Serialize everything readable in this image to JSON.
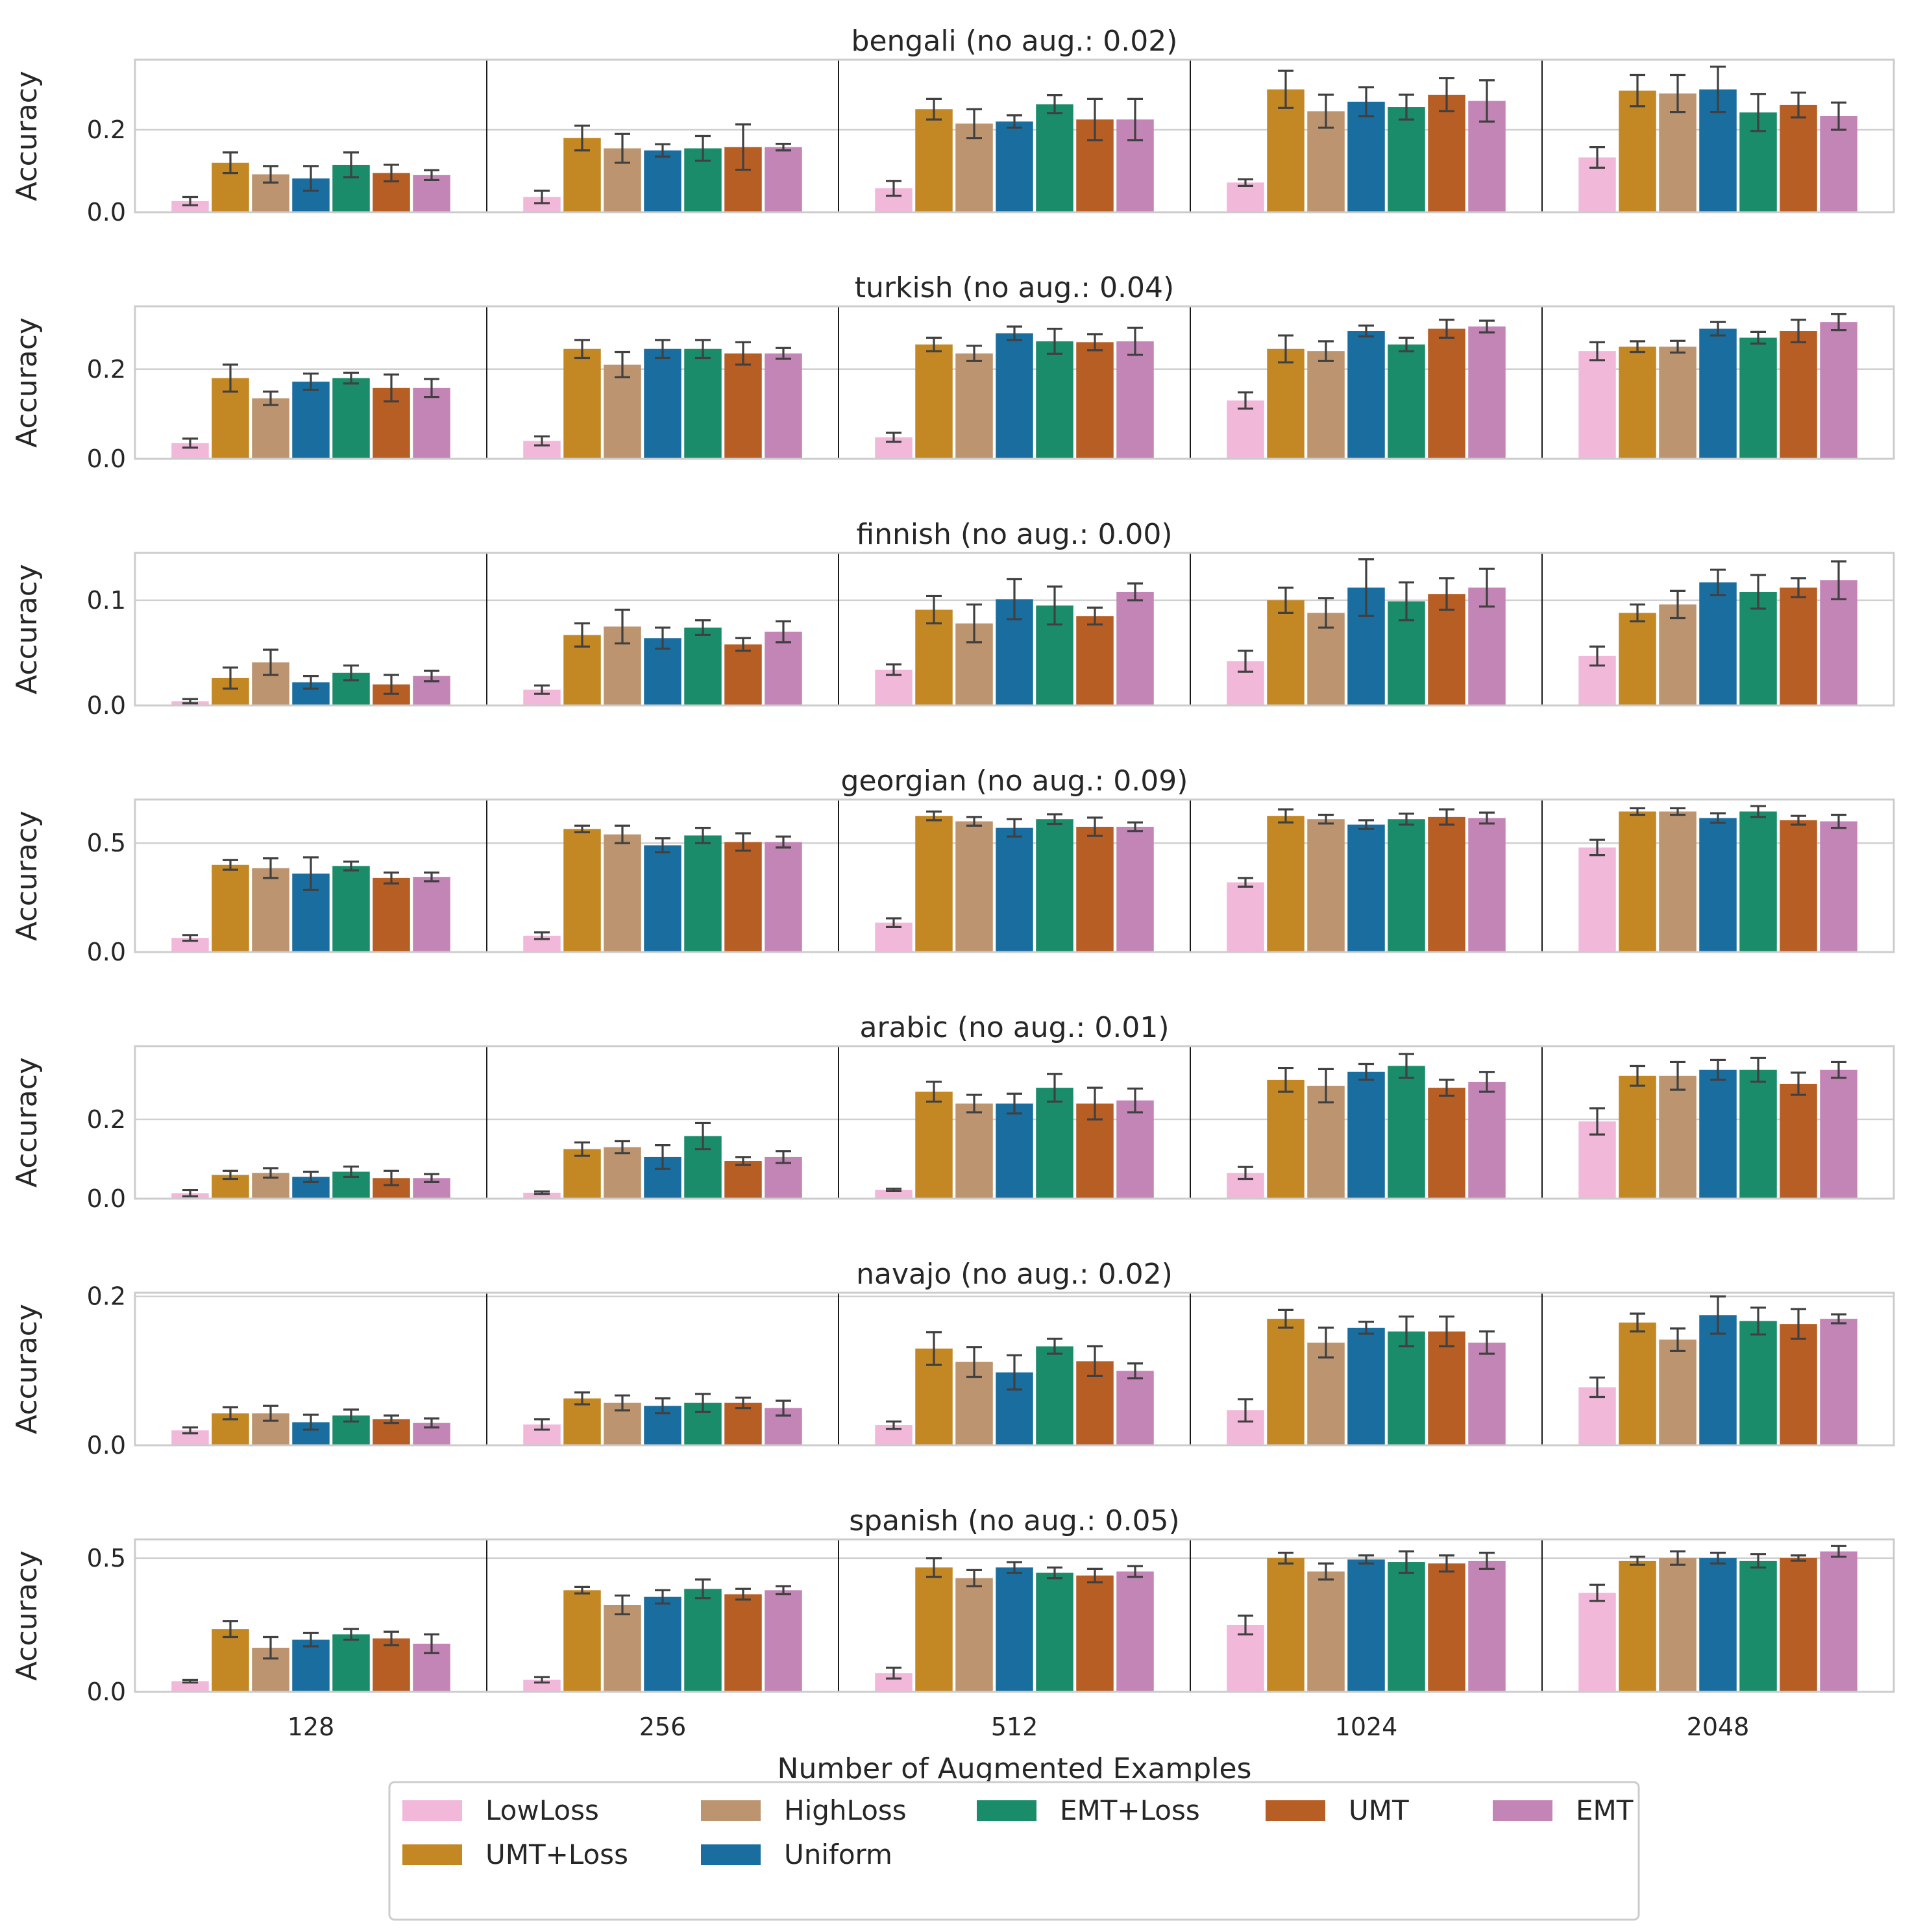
{
  "chart_data": {
    "type": "bar",
    "xlabel": "Number of Augmented Examples",
    "ylabel": "Accuracy",
    "categories": [
      "128",
      "256",
      "512",
      "1024",
      "2048"
    ],
    "series_names": [
      "LowLoss",
      "UMT+Loss",
      "HighLoss",
      "Uniform",
      "EMT+Loss",
      "UMT",
      "EMT"
    ],
    "legend_order": [
      "LowLoss",
      "HighLoss",
      "EMT+Loss",
      "UMT",
      "EMT",
      "UMT+Loss",
      "Uniform"
    ],
    "colors": {
      "LowLoss": "#f1b8da",
      "UMT+Loss": "#c38824",
      "HighLoss": "#bc946f",
      "Uniform": "#1a6e9f",
      "EMT+Loss": "#1a8c6a",
      "UMT": "#b65e24",
      "EMT": "#c285b6"
    },
    "legend_position": "bottom-center",
    "grid": true,
    "panels": [
      {
        "title": "bengali (no aug.: 0.02)",
        "ylim": [
          0,
          0.37
        ],
        "yticks": [
          0.0,
          0.2
        ],
        "ytick_labels": [
          "0.0",
          "0.2"
        ],
        "values": [
          [
            0.027,
            0.12,
            0.092,
            0.082,
            0.115,
            0.095,
            0.09
          ],
          [
            0.037,
            0.18,
            0.155,
            0.15,
            0.155,
            0.158,
            0.158
          ],
          [
            0.058,
            0.25,
            0.215,
            0.22,
            0.262,
            0.225,
            0.225
          ],
          [
            0.072,
            0.298,
            0.245,
            0.268,
            0.255,
            0.285,
            0.27
          ],
          [
            0.133,
            0.295,
            0.288,
            0.298,
            0.242,
            0.26,
            0.233
          ]
        ],
        "errors": [
          [
            0.01,
            0.025,
            0.02,
            0.03,
            0.03,
            0.02,
            0.012
          ],
          [
            0.015,
            0.03,
            0.035,
            0.015,
            0.03,
            0.055,
            0.008
          ],
          [
            0.018,
            0.025,
            0.035,
            0.015,
            0.022,
            0.05,
            0.05
          ],
          [
            0.008,
            0.045,
            0.04,
            0.035,
            0.03,
            0.04,
            0.05
          ],
          [
            0.025,
            0.038,
            0.045,
            0.055,
            0.045,
            0.03,
            0.033
          ]
        ]
      },
      {
        "title": "turkish (no aug.: 0.04)",
        "ylim": [
          0,
          0.34
        ],
        "yticks": [
          0.0,
          0.2
        ],
        "ytick_labels": [
          "0.0",
          "0.2"
        ],
        "values": [
          [
            0.035,
            0.18,
            0.135,
            0.172,
            0.18,
            0.158,
            0.158
          ],
          [
            0.04,
            0.245,
            0.21,
            0.245,
            0.245,
            0.235,
            0.235
          ],
          [
            0.048,
            0.255,
            0.235,
            0.28,
            0.262,
            0.26,
            0.262
          ],
          [
            0.13,
            0.245,
            0.24,
            0.285,
            0.255,
            0.29,
            0.295
          ],
          [
            0.24,
            0.25,
            0.25,
            0.29,
            0.27,
            0.285,
            0.305
          ]
        ],
        "errors": [
          [
            0.01,
            0.03,
            0.015,
            0.018,
            0.012,
            0.03,
            0.02
          ],
          [
            0.01,
            0.02,
            0.028,
            0.02,
            0.02,
            0.025,
            0.012
          ],
          [
            0.01,
            0.015,
            0.017,
            0.015,
            0.028,
            0.018,
            0.03
          ],
          [
            0.018,
            0.03,
            0.022,
            0.012,
            0.015,
            0.02,
            0.013
          ],
          [
            0.02,
            0.012,
            0.013,
            0.015,
            0.013,
            0.025,
            0.018
          ]
        ]
      },
      {
        "title": "finnish (no aug.: 0.00)",
        "ylim": [
          0,
          0.145
        ],
        "yticks": [
          0.0,
          0.1
        ],
        "ytick_labels": [
          "0.0",
          "0.1"
        ],
        "values": [
          [
            0.004,
            0.026,
            0.041,
            0.022,
            0.031,
            0.02,
            0.028
          ],
          [
            0.015,
            0.067,
            0.075,
            0.064,
            0.074,
            0.058,
            0.07
          ],
          [
            0.034,
            0.091,
            0.078,
            0.101,
            0.095,
            0.085,
            0.108
          ],
          [
            0.042,
            0.1,
            0.088,
            0.112,
            0.099,
            0.106,
            0.112
          ],
          [
            0.047,
            0.088,
            0.096,
            0.117,
            0.108,
            0.112,
            0.119
          ]
        ],
        "errors": [
          [
            0.002,
            0.01,
            0.012,
            0.006,
            0.007,
            0.009,
            0.005
          ],
          [
            0.004,
            0.011,
            0.016,
            0.01,
            0.007,
            0.006,
            0.01
          ],
          [
            0.005,
            0.013,
            0.018,
            0.019,
            0.018,
            0.008,
            0.008
          ],
          [
            0.01,
            0.012,
            0.014,
            0.027,
            0.018,
            0.015,
            0.018
          ],
          [
            0.009,
            0.008,
            0.013,
            0.012,
            0.016,
            0.009,
            0.018
          ]
        ]
      },
      {
        "title": "georgian (no aug.: 0.09)",
        "ylim": [
          0,
          0.7
        ],
        "yticks": [
          0.0,
          0.5
        ],
        "ytick_labels": [
          "0.0",
          "0.5"
        ],
        "values": [
          [
            0.065,
            0.4,
            0.385,
            0.36,
            0.395,
            0.34,
            0.345
          ],
          [
            0.075,
            0.565,
            0.54,
            0.49,
            0.535,
            0.505,
            0.505
          ],
          [
            0.135,
            0.625,
            0.6,
            0.57,
            0.61,
            0.575,
            0.575
          ],
          [
            0.32,
            0.625,
            0.61,
            0.585,
            0.61,
            0.62,
            0.615
          ],
          [
            0.48,
            0.645,
            0.645,
            0.615,
            0.645,
            0.605,
            0.6
          ]
        ],
        "errors": [
          [
            0.013,
            0.022,
            0.045,
            0.075,
            0.02,
            0.025,
            0.02
          ],
          [
            0.015,
            0.015,
            0.04,
            0.032,
            0.035,
            0.04,
            0.025
          ],
          [
            0.02,
            0.02,
            0.02,
            0.04,
            0.022,
            0.042,
            0.02
          ],
          [
            0.02,
            0.03,
            0.02,
            0.02,
            0.025,
            0.035,
            0.025
          ],
          [
            0.035,
            0.015,
            0.015,
            0.022,
            0.025,
            0.02,
            0.03
          ]
        ]
      },
      {
        "title": "arabic (no aug.: 0.01)",
        "ylim": [
          0,
          0.385
        ],
        "yticks": [
          0.0,
          0.2
        ],
        "ytick_labels": [
          "0.0",
          "0.2"
        ],
        "values": [
          [
            0.014,
            0.06,
            0.065,
            0.055,
            0.068,
            0.052,
            0.052
          ],
          [
            0.015,
            0.125,
            0.13,
            0.105,
            0.158,
            0.095,
            0.105
          ],
          [
            0.022,
            0.27,
            0.24,
            0.24,
            0.28,
            0.24,
            0.248
          ],
          [
            0.065,
            0.3,
            0.285,
            0.32,
            0.335,
            0.28,
            0.295
          ],
          [
            0.195,
            0.31,
            0.31,
            0.325,
            0.325,
            0.29,
            0.325
          ]
        ],
        "errors": [
          [
            0.008,
            0.01,
            0.012,
            0.013,
            0.013,
            0.018,
            0.01
          ],
          [
            0.003,
            0.017,
            0.015,
            0.03,
            0.033,
            0.01,
            0.015
          ],
          [
            0.003,
            0.025,
            0.022,
            0.025,
            0.035,
            0.04,
            0.03
          ],
          [
            0.015,
            0.03,
            0.042,
            0.02,
            0.03,
            0.02,
            0.025
          ],
          [
            0.033,
            0.025,
            0.035,
            0.025,
            0.03,
            0.028,
            0.02
          ]
        ]
      },
      {
        "title": "navajo (no aug.: 0.02)",
        "ylim": [
          0,
          0.205
        ],
        "yticks": [
          0.0,
          0.2
        ],
        "ytick_labels": [
          "0.0",
          "0.2"
        ],
        "values": [
          [
            0.02,
            0.043,
            0.043,
            0.031,
            0.04,
            0.035,
            0.03
          ],
          [
            0.028,
            0.063,
            0.057,
            0.053,
            0.057,
            0.057,
            0.05
          ],
          [
            0.027,
            0.13,
            0.112,
            0.098,
            0.133,
            0.113,
            0.1
          ],
          [
            0.047,
            0.17,
            0.138,
            0.158,
            0.153,
            0.153,
            0.138
          ],
          [
            0.078,
            0.165,
            0.142,
            0.175,
            0.167,
            0.163,
            0.17
          ]
        ],
        "errors": [
          [
            0.004,
            0.008,
            0.01,
            0.01,
            0.008,
            0.005,
            0.006
          ],
          [
            0.007,
            0.008,
            0.01,
            0.01,
            0.012,
            0.007,
            0.01
          ],
          [
            0.005,
            0.022,
            0.02,
            0.023,
            0.01,
            0.02,
            0.01
          ],
          [
            0.015,
            0.012,
            0.02,
            0.008,
            0.02,
            0.02,
            0.015
          ],
          [
            0.013,
            0.012,
            0.015,
            0.025,
            0.018,
            0.02,
            0.006
          ]
        ]
      },
      {
        "title": "spanish (no aug.: 0.05)",
        "ylim": [
          0,
          0.57
        ],
        "yticks": [
          0.0,
          0.5
        ],
        "ytick_labels": [
          "0.0",
          "0.5"
        ],
        "values": [
          [
            0.04,
            0.235,
            0.165,
            0.195,
            0.215,
            0.2,
            0.18
          ],
          [
            0.045,
            0.38,
            0.325,
            0.355,
            0.385,
            0.365,
            0.38
          ],
          [
            0.07,
            0.465,
            0.425,
            0.465,
            0.445,
            0.435,
            0.45
          ],
          [
            0.25,
            0.5,
            0.45,
            0.495,
            0.485,
            0.48,
            0.49
          ],
          [
            0.37,
            0.49,
            0.5,
            0.5,
            0.49,
            0.5,
            0.525
          ]
        ],
        "errors": [
          [
            0.005,
            0.03,
            0.04,
            0.025,
            0.02,
            0.025,
            0.035
          ],
          [
            0.01,
            0.012,
            0.035,
            0.025,
            0.035,
            0.02,
            0.015
          ],
          [
            0.02,
            0.035,
            0.03,
            0.02,
            0.02,
            0.025,
            0.02
          ],
          [
            0.035,
            0.02,
            0.03,
            0.015,
            0.04,
            0.03,
            0.03
          ],
          [
            0.03,
            0.015,
            0.025,
            0.02,
            0.025,
            0.01,
            0.02
          ]
        ]
      }
    ]
  }
}
